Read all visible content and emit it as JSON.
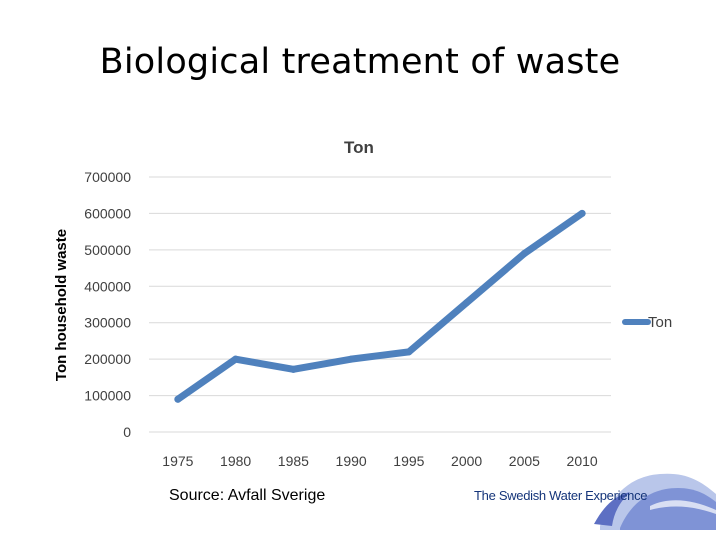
{
  "slide": {
    "title": "Biological treatment of waste",
    "source": "Source: Avfall Sverige",
    "brand": "The Swedish Water Experience"
  },
  "colors": {
    "series": "#4f81bd",
    "grid": "#d9d9d9",
    "axis_text": "#404040",
    "brand": "#15357a"
  },
  "chart_data": {
    "type": "line",
    "title": "Ton",
    "xlabel": "",
    "ylabel": "Ton household waste",
    "x": [
      "1975",
      "1980",
      "1985",
      "1990",
      "1995",
      "2000",
      "2005",
      "2010"
    ],
    "series": [
      {
        "name": "Ton",
        "values": [
          90000,
          200000,
          172000,
          200000,
          220000,
          355000,
          490000,
          600000
        ]
      }
    ],
    "yticks": [
      0,
      100000,
      200000,
      300000,
      400000,
      500000,
      600000,
      700000
    ],
    "ylim": [
      0,
      700000
    ],
    "grid": true,
    "legend": "right"
  }
}
